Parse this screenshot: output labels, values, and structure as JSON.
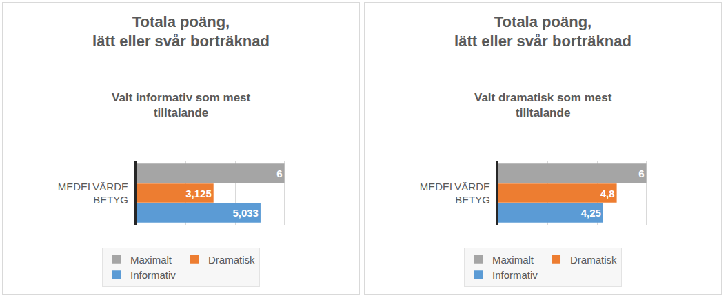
{
  "chart_data": [
    {
      "type": "bar",
      "orientation": "horizontal",
      "title": "Totala poäng,\nlätt eller svår borträknad",
      "subtitle": "Valt informativ som mest\ntilltalande",
      "categories": [
        "MEDELVÄRDE\nBETYG"
      ],
      "series": [
        {
          "name": "Maximalt",
          "color": "#a5a5a5",
          "values": [
            6
          ],
          "value_labels": [
            "6"
          ]
        },
        {
          "name": "Dramatisk",
          "color": "#ed7d31",
          "values": [
            3.125
          ],
          "value_labels": [
            "3,125"
          ]
        },
        {
          "name": "Informativ",
          "color": "#5b9bd5",
          "values": [
            5.033
          ],
          "value_labels": [
            "5,033"
          ]
        }
      ],
      "xlim": [
        0,
        8
      ],
      "xticks": [
        0,
        2,
        4,
        6,
        8
      ],
      "grid": true,
      "tick_labels": "y",
      "data_labels": true,
      "legend": "bottom"
    },
    {
      "type": "bar",
      "orientation": "horizontal",
      "title": "Totala poäng,\nlätt eller svår borträknad",
      "subtitle": "Valt dramatisk som mest\ntilltalande",
      "categories": [
        "MEDELVÄRDE\nBETYG"
      ],
      "series": [
        {
          "name": "Maximalt",
          "color": "#a5a5a5",
          "values": [
            6
          ],
          "value_labels": [
            "6"
          ]
        },
        {
          "name": "Dramatisk",
          "color": "#ed7d31",
          "values": [
            4.8
          ],
          "value_labels": [
            "4,8"
          ]
        },
        {
          "name": "Informativ",
          "color": "#5b9bd5",
          "values": [
            4.25
          ],
          "value_labels": [
            "4,25"
          ]
        }
      ],
      "xlim": [
        0,
        8
      ],
      "xticks": [
        0,
        2,
        4,
        6,
        8
      ],
      "grid": true,
      "tick_labels": "y",
      "data_labels": true,
      "legend": "bottom"
    }
  ]
}
